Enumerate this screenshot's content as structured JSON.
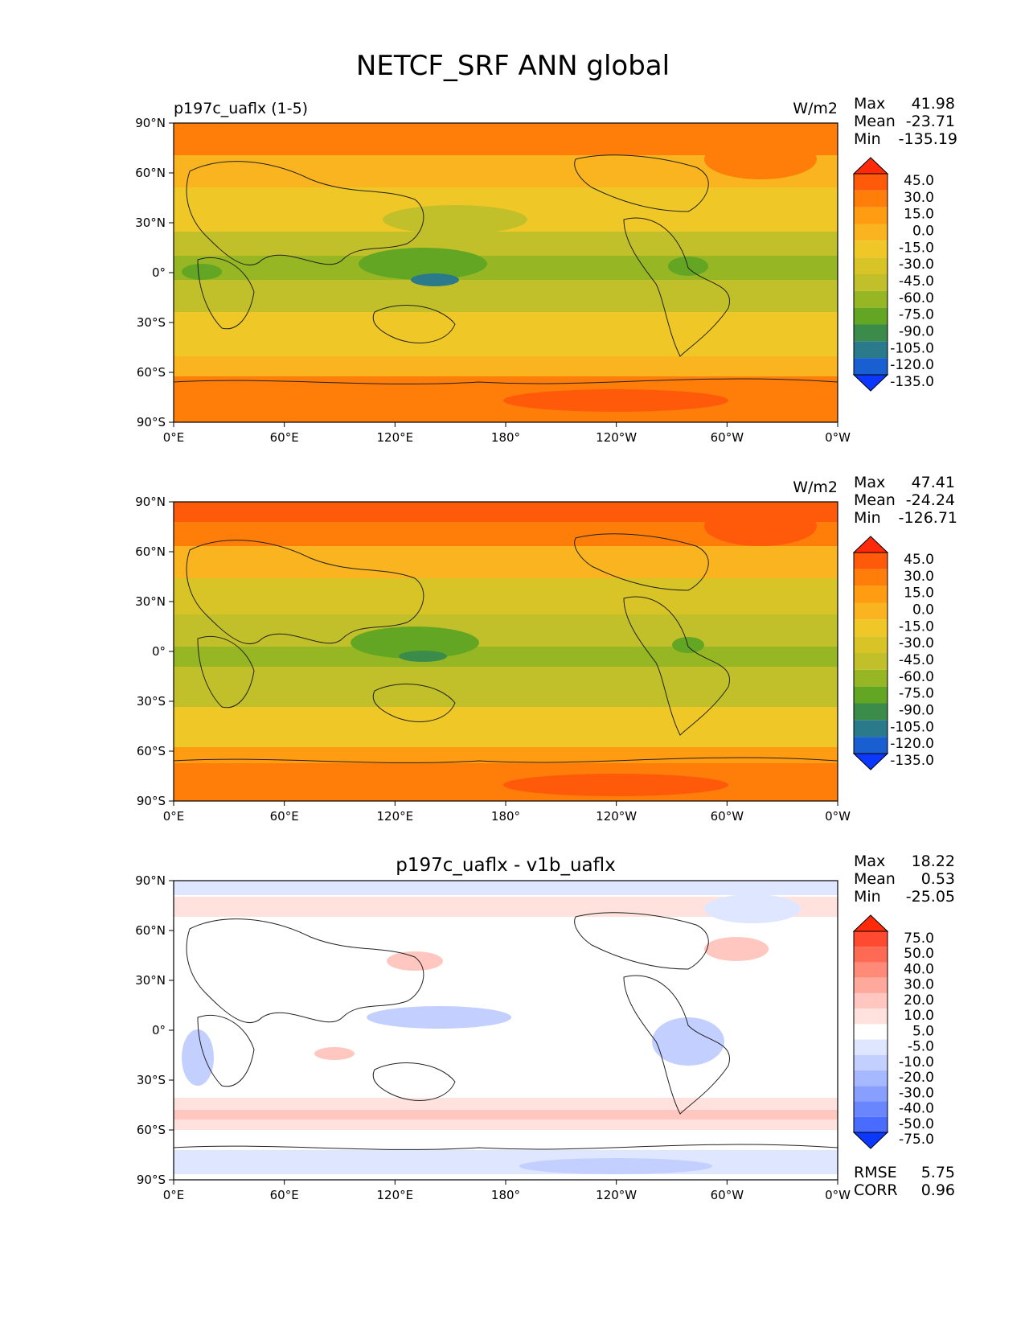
{
  "figure": {
    "title": "NETCF_SRF ANN global"
  },
  "chart_data": [
    {
      "type": "heatmap",
      "title": "p197c_uaflx (1-5)",
      "units": "W/m2",
      "stats": {
        "max_label": "Max",
        "max": "41.98",
        "mean_label": "Mean",
        "mean": "-23.71",
        "min_label": "Min",
        "min": "-135.19"
      },
      "colorbar": {
        "levels": [
          "45.0",
          "30.0",
          "15.0",
          "0.0",
          "-15.0",
          "-30.0",
          "-45.0",
          "-60.0",
          "-75.0",
          "-90.0",
          "-105.0",
          "-120.0",
          "-135.0"
        ],
        "colors": [
          "#ff2a0a",
          "#ff5a0a",
          "#ff7e0a",
          "#ff9c12",
          "#f9b420",
          "#efc827",
          "#d9c427",
          "#c2c02a",
          "#97b624",
          "#62a624",
          "#3b8c4a",
          "#2a7a8c",
          "#1a5fd1",
          "#0b37ff"
        ]
      },
      "x_ticks": [
        "0°E",
        "60°E",
        "120°E",
        "180°",
        "120°W",
        "60°W",
        "0°W"
      ],
      "y_ticks": [
        "90°N",
        "60°N",
        "30°N",
        "0°",
        "30°S",
        "60°S",
        "90°S"
      ]
    },
    {
      "type": "heatmap",
      "title": "",
      "units": "W/m2",
      "stats": {
        "max_label": "Max",
        "max": "47.41",
        "mean_label": "Mean",
        "mean": "-24.24",
        "min_label": "Min",
        "min": "-126.71"
      },
      "colorbar": {
        "levels": [
          "45.0",
          "30.0",
          "15.0",
          "0.0",
          "-15.0",
          "-30.0",
          "-45.0",
          "-60.0",
          "-75.0",
          "-90.0",
          "-105.0",
          "-120.0",
          "-135.0"
        ],
        "colors": [
          "#ff2a0a",
          "#ff5a0a",
          "#ff7e0a",
          "#ff9c12",
          "#f9b420",
          "#efc827",
          "#d9c427",
          "#c2c02a",
          "#97b624",
          "#62a624",
          "#3b8c4a",
          "#2a7a8c",
          "#1a5fd1",
          "#0b37ff"
        ]
      },
      "x_ticks": [
        "0°E",
        "60°E",
        "120°E",
        "180°",
        "120°W",
        "60°W",
        "0°W"
      ],
      "y_ticks": [
        "90°N",
        "60°N",
        "30°N",
        "0°",
        "30°S",
        "60°S",
        "90°S"
      ]
    },
    {
      "type": "heatmap",
      "title": "p197c_uaflx - v1b_uaflx",
      "units": "",
      "stats": {
        "max_label": "Max",
        "max": "18.22",
        "mean_label": "Mean",
        "mean": "0.53",
        "min_label": "Min",
        "min": "-25.05",
        "rmse_label": "RMSE",
        "rmse": "5.75",
        "corr_label": "CORR",
        "corr": "0.96"
      },
      "colorbar": {
        "levels": [
          "75.0",
          "50.0",
          "40.0",
          "30.0",
          "20.0",
          "10.0",
          "5.0",
          "-5.0",
          "-10.0",
          "-20.0",
          "-30.0",
          "-40.0",
          "-50.0",
          "-75.0"
        ],
        "colors": [
          "#ff2a0a",
          "#ff4a32",
          "#ff6a55",
          "#ff8a78",
          "#ffa99c",
          "#ffc7bf",
          "#ffe2dd",
          "#ffffff",
          "#dfe6ff",
          "#c3cfff",
          "#a6b8ff",
          "#889fff",
          "#6a86ff",
          "#4a6bff",
          "#0b37ff"
        ]
      },
      "x_ticks": [
        "0°E",
        "60°E",
        "120°E",
        "180°",
        "120°W",
        "60°W",
        "0°W"
      ],
      "y_ticks": [
        "90°N",
        "60°N",
        "30°N",
        "0°",
        "30°S",
        "60°S",
        "90°S"
      ]
    }
  ]
}
